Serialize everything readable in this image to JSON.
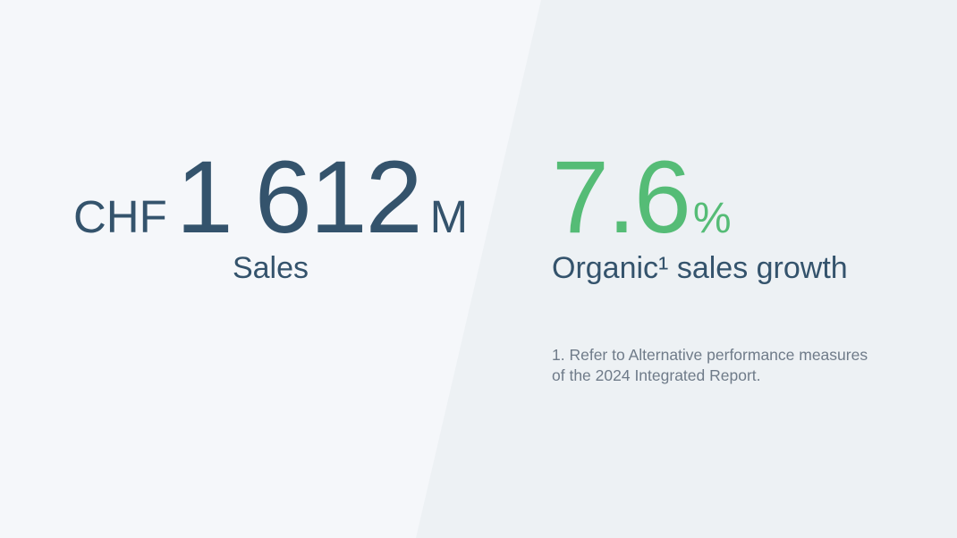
{
  "sales": {
    "currency": "CHF",
    "value": "1 612",
    "unit": "M",
    "label": "Sales"
  },
  "growth": {
    "value": "7.6",
    "unit": "%",
    "label": "Organic¹ sales growth"
  },
  "footnote": "1. Refer to Alternative performance measures\nof the 2024 Integrated Report.",
  "colors": {
    "navy": "#34536C",
    "green": "#55BC76",
    "muted": "#6F7B89",
    "bg_left": "#F5F7FA",
    "bg_right": "#EDF1F4"
  }
}
